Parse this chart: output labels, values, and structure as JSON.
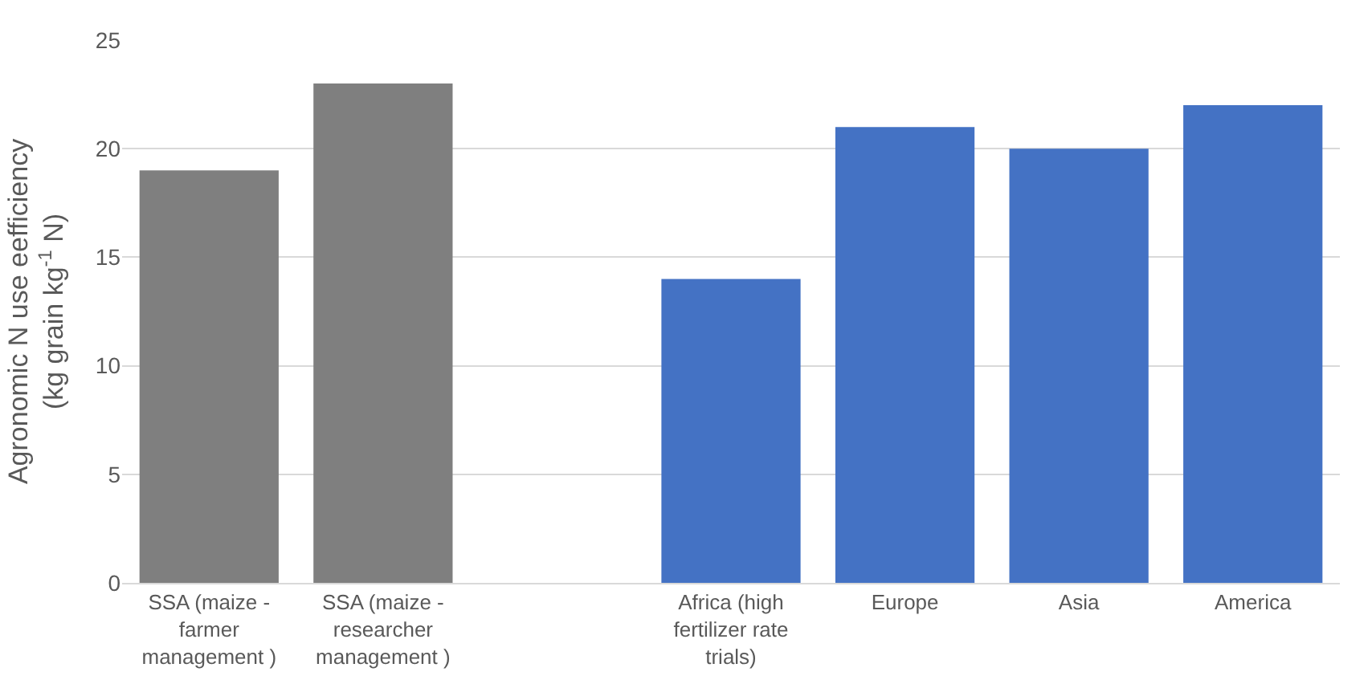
{
  "chart_data": {
    "type": "bar",
    "ylabel": "Agronomic N use eefficiency (kg grain kg$^{-1}$ N)",
    "categories": [
      "SSA (maize - farmer management )",
      "SSA (maize - researcher management )",
      null,
      "Africa (high fertilizer rate trials)",
      "Europe",
      "Asia",
      "America"
    ],
    "values": [
      19,
      23,
      null,
      14,
      21,
      20,
      22
    ],
    "colors": [
      "#7f7f7f",
      "#7f7f7f",
      "#7f7f7f",
      "#4472c4",
      "#4472c4",
      "#4472c4",
      "#4472c4"
    ],
    "ylim": [
      0,
      25
    ],
    "yticks": [
      0,
      5,
      10,
      15,
      20,
      25
    ],
    "grid": "y"
  }
}
